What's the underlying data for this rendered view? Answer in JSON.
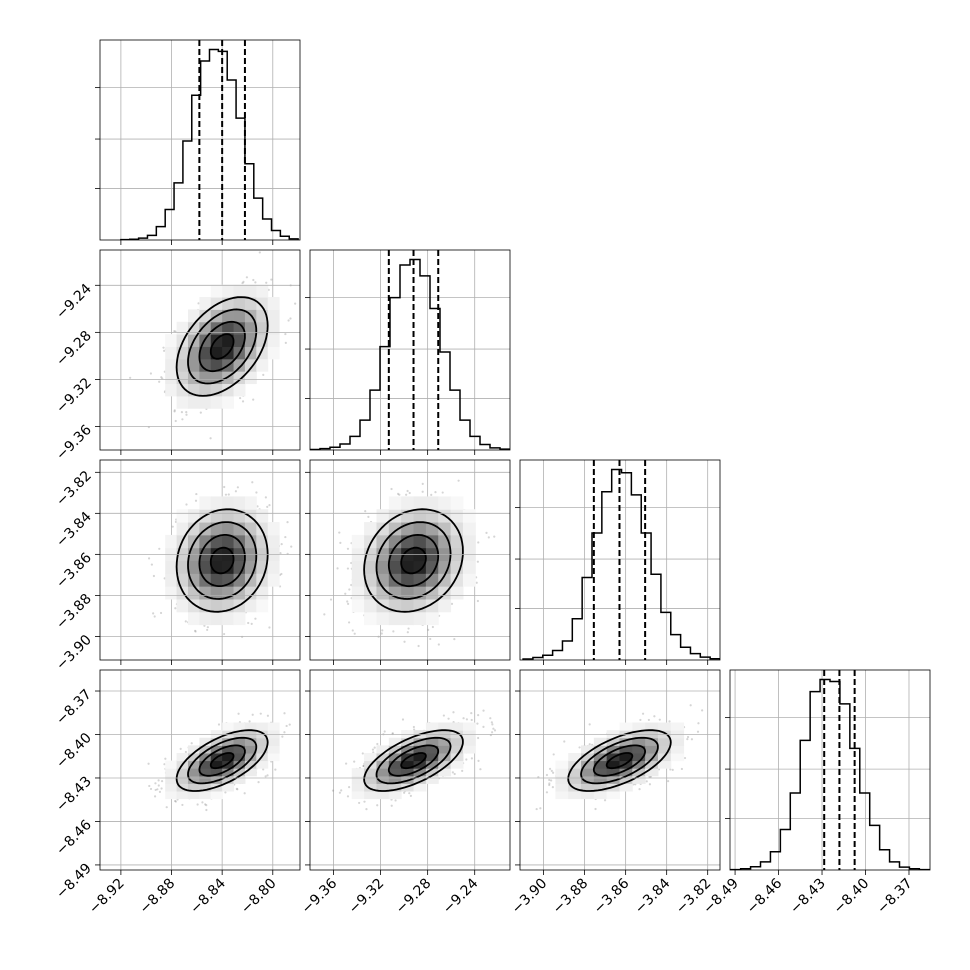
{
  "chart_data": {
    "type": "corner",
    "title": "",
    "grid": true,
    "parameters": [
      {
        "mean": -8.84,
        "std": 0.018,
        "q16": -8.858,
        "q50": -8.84,
        "q84": -8.822,
        "range": [
          -8.9365,
          -8.7785
        ],
        "ticks": [
          -8.92,
          -8.88,
          -8.84,
          -8.8
        ],
        "tick_labels": [
          "−8.92",
          "−8.88",
          "−8.84",
          "−8.80"
        ]
      },
      {
        "mean": -9.292,
        "std": 0.021,
        "q16": -9.313,
        "q50": -9.292,
        "q84": -9.271,
        "range": [
          -9.38,
          -9.21
        ],
        "ticks": [
          -9.36,
          -9.32,
          -9.28,
          -9.24
        ],
        "tick_labels": [
          "−9.36",
          "−9.32",
          "−9.28",
          "−9.24"
        ]
      },
      {
        "mean": -3.863,
        "std": 0.0125,
        "q16": -3.8755,
        "q50": -3.863,
        "q84": -3.8505,
        "range": [
          -3.9115,
          -3.814
        ],
        "ticks": [
          -3.9,
          -3.88,
          -3.86,
          -3.84,
          -3.82
        ],
        "tick_labels": [
          "−3.90",
          "−3.88",
          "−3.86",
          "−3.84",
          "−3.82"
        ]
      },
      {
        "mean": -8.418,
        "std": 0.0105,
        "q16": -8.4285,
        "q50": -8.418,
        "q84": -8.4075,
        "range": [
          -8.4935,
          -8.3555
        ],
        "ticks": [
          -8.49,
          -8.46,
          -8.43,
          -8.4,
          -8.37
        ],
        "tick_labels": [
          "−8.49",
          "−8.46",
          "−8.43",
          "−8.40",
          "−8.37"
        ]
      }
    ],
    "histograms": [
      {
        "bin_range": [
          -8.92,
          -8.78
        ],
        "counts": [
          1,
          2,
          5,
          12,
          35,
          80,
          150,
          260,
          380,
          470,
          500,
          495,
          420,
          320,
          200,
          110,
          55,
          25,
          10,
          3
        ]
      },
      {
        "bin_range": [
          -9.38,
          -9.21
        ],
        "counts": [
          2,
          5,
          10,
          22,
          50,
          110,
          220,
          380,
          560,
          680,
          700,
          640,
          520,
          360,
          220,
          110,
          50,
          20,
          8,
          3
        ]
      },
      {
        "bin_range": [
          -3.91,
          -3.814
        ],
        "counts": [
          3,
          8,
          15,
          30,
          60,
          130,
          260,
          400,
          530,
          600,
          590,
          520,
          400,
          270,
          150,
          80,
          40,
          20,
          9,
          4
        ]
      },
      {
        "bin_range": [
          -8.493,
          -8.356
        ],
        "counts": [
          1,
          3,
          8,
          20,
          45,
          100,
          190,
          320,
          440,
          470,
          465,
          410,
          300,
          190,
          110,
          50,
          20,
          7,
          3,
          1
        ]
      }
    ],
    "correlations": {
      "1-0": 0.42,
      "2-0": 0.12,
      "2-1": 0.18,
      "3-0": 0.6,
      "3-1": 0.62,
      "3-2": 0.6
    }
  }
}
